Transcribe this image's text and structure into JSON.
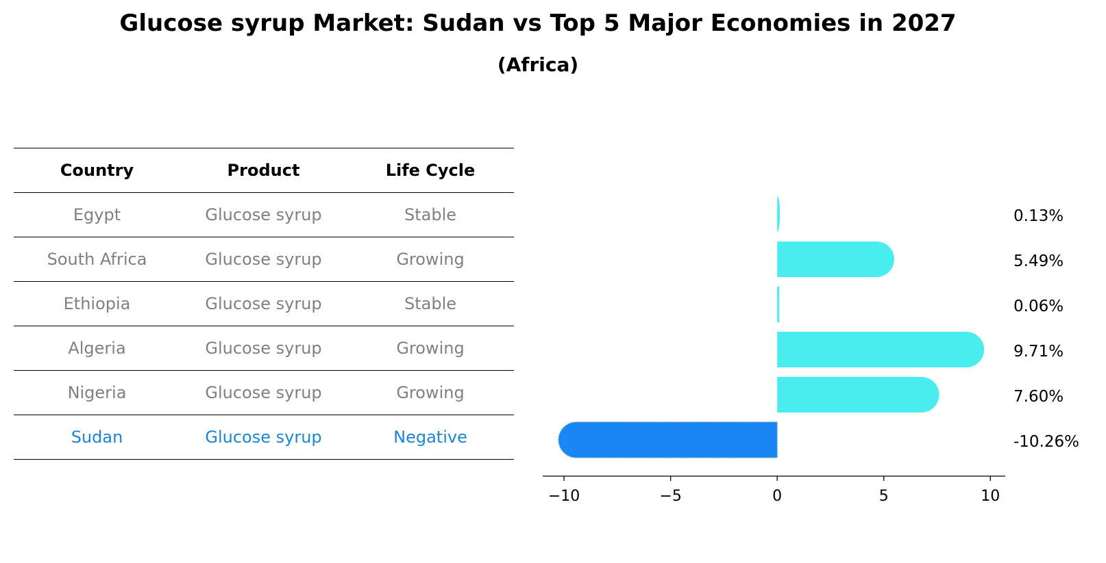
{
  "header": {
    "title": "Glucose syrup Market: Sudan vs Top 5 Major Economies in 2027",
    "subtitle": "(Africa)"
  },
  "table": {
    "columns": [
      "Country",
      "Product",
      "Life Cycle"
    ],
    "rows": [
      {
        "country": "Egypt",
        "product": "Glucose syrup",
        "life_cycle": "Stable"
      },
      {
        "country": "South Africa",
        "product": "Glucose syrup",
        "life_cycle": "Growing"
      },
      {
        "country": "Ethiopia",
        "product": "Glucose syrup",
        "life_cycle": "Stable"
      },
      {
        "country": "Algeria",
        "product": "Glucose syrup",
        "life_cycle": "Growing"
      },
      {
        "country": "Nigeria",
        "product": "Glucose syrup",
        "life_cycle": "Growing"
      },
      {
        "country": "Sudan",
        "product": "Glucose syrup",
        "life_cycle": "Negative"
      }
    ]
  },
  "chart_data": {
    "type": "bar",
    "orientation": "horizontal",
    "categories": [
      "Egypt",
      "South Africa",
      "Ethiopia",
      "Algeria",
      "Nigeria",
      "Sudan"
    ],
    "values": [
      0.13,
      5.49,
      0.06,
      9.71,
      7.6,
      -10.26
    ],
    "value_labels": [
      "0.13%",
      "5.49%",
      "0.06%",
      "9.71%",
      "7.60%",
      "-10.26%"
    ],
    "xlim": [
      -11,
      10.7
    ],
    "xticks": [
      -10,
      -5,
      0,
      5,
      10
    ],
    "xtick_labels": [
      "−10",
      "−5",
      "0",
      "5",
      "10"
    ],
    "colors": {
      "positive": "#4aeded",
      "highlight": "#1a86f4"
    },
    "highlight_category": "Sudan"
  }
}
